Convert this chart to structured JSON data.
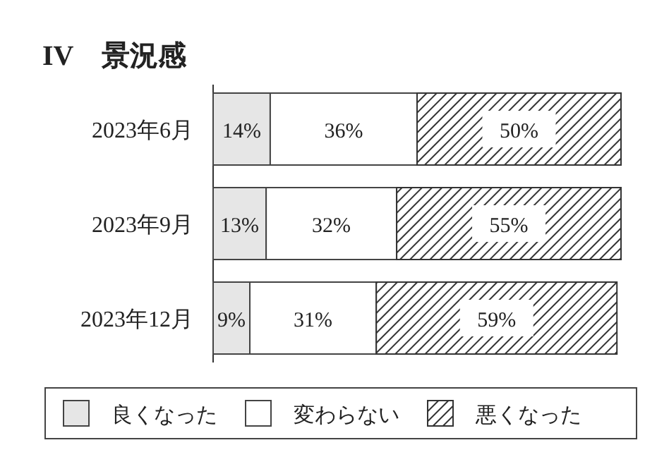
{
  "chart_data": {
    "type": "bar",
    "orientation": "horizontal",
    "stacked": true,
    "title": "IV　景況感",
    "categories": [
      "2023年6月",
      "2023年9月",
      "2023年12月"
    ],
    "series": [
      {
        "name": "良くなった",
        "color": "#e6e6e6",
        "values": [
          14,
          13,
          9
        ],
        "value_labels": [
          "14%",
          "13%",
          "9%"
        ]
      },
      {
        "name": "変わらない",
        "color": "#ffffff",
        "values": [
          36,
          32,
          31
        ],
        "value_labels": [
          "36%",
          "32%",
          "31%"
        ]
      },
      {
        "name": "悪くなった",
        "color": "#333333",
        "values": [
          50,
          55,
          59
        ],
        "value_labels": [
          "50%",
          "55%",
          "59%"
        ]
      }
    ],
    "legend": "bottom"
  }
}
